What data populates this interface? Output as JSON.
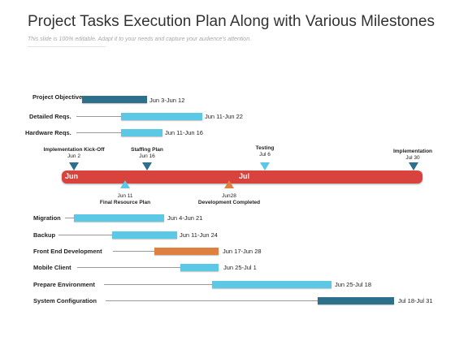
{
  "title": "Project Tasks Execution Plan Along with Various Milestones",
  "subtitle": "This slide is 100% editable. Adapt it to your needs and capture your audience's attention.",
  "colors": {
    "dark_teal": "#2e6f8c",
    "light_blue": "#5bc8e6",
    "orange": "#e08040",
    "timeline_red": "#d9433d"
  },
  "timeline": {
    "months": [
      "Jun",
      "Jul"
    ]
  },
  "top_tasks": [
    {
      "label": "Project Objectives",
      "dates": "Jun 3-Jun 12",
      "color": "dark_teal"
    },
    {
      "label": "Detailed Reqs.",
      "dates": "Jun 11-Jun 22",
      "color": "light_blue"
    },
    {
      "label": "Hardware Reqs.",
      "dates": "Jun 11-Jun 16",
      "color": "light_blue"
    }
  ],
  "milestones_above": [
    {
      "name": "Implementation Kick-Off",
      "date": "Jun 2",
      "color": "dark_teal"
    },
    {
      "name": "Staffing Plan",
      "date": "Jun 16",
      "color": "dark_teal"
    },
    {
      "name": "Testing",
      "date": "Jul 6",
      "color": "light_blue"
    },
    {
      "name": "Implementation",
      "date": "Jul 30",
      "color": "dark_teal"
    }
  ],
  "milestones_below": [
    {
      "name": "Final Resource Plan",
      "date": "Jun 11",
      "color": "light_blue"
    },
    {
      "name": "Development Completed",
      "date": "Jun28",
      "color": "orange"
    }
  ],
  "bottom_tasks": [
    {
      "label": "Migration",
      "dates": "Jun 4-Jun 21",
      "color": "light_blue"
    },
    {
      "label": "Backup",
      "dates": "Jun 11-Jun 24",
      "color": "light_blue"
    },
    {
      "label": "Front End Development",
      "dates": "Jun 17-Jun 28",
      "color": "orange"
    },
    {
      "label": "Mobile Client",
      "dates": "Jun 25-Jul 1",
      "color": "light_blue"
    },
    {
      "label": "Prepare Environment",
      "dates": "Jun 25-Jul 18",
      "color": "light_blue"
    },
    {
      "label": "System Configuration",
      "dates": "Jul 18-Jul 31",
      "color": "dark_teal"
    }
  ]
}
